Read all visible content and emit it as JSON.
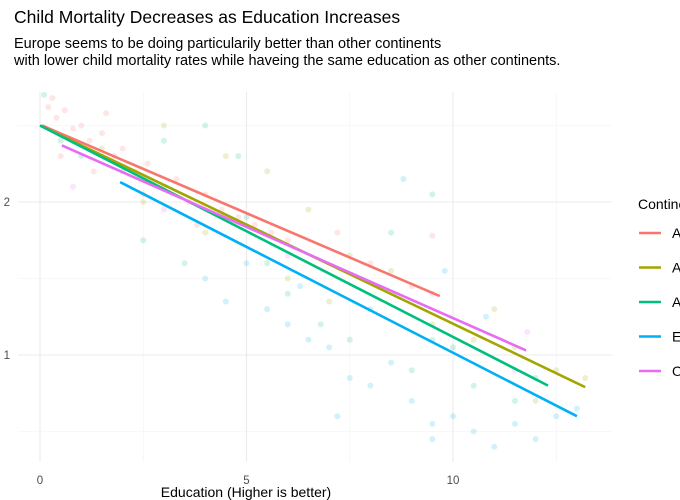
{
  "chart_data": {
    "type": "scatter",
    "title": "Child Mortality Decreases as Education Increases",
    "subtitle": [
      "Europe seems to be doing particularily better than other continents",
      "with lower child mortality rates while haveing the same education as other continents."
    ],
    "xlabel": "Education (Higher is better)",
    "ylabel": "",
    "xlim": [
      -0.5,
      13.8
    ],
    "ylim": [
      0.3,
      2.75
    ],
    "x_ticks": [
      0,
      5,
      10
    ],
    "y_ticks": [
      1,
      2
    ],
    "grid": true,
    "legend": {
      "title": "Continent",
      "placement": "right",
      "entries": [
        "Africa",
        "Americas",
        "Asia",
        "Europe",
        "Oceania"
      ]
    },
    "colors": {
      "Africa": "#F8766D",
      "Americas": "#A3A500",
      "Asia": "#00BF7D",
      "Europe": "#00B0F6",
      "Oceania": "#E76BF3"
    },
    "trend_lines": [
      {
        "name": "Africa",
        "x": [
          0.05,
          9.68
        ],
        "y": [
          2.5,
          1.385
        ]
      },
      {
        "name": "Americas",
        "x": [
          0.0,
          13.2
        ],
        "y": [
          2.5,
          0.79
        ]
      },
      {
        "name": "Asia",
        "x": [
          0.0,
          12.3
        ],
        "y": [
          2.5,
          0.8
        ]
      },
      {
        "name": "Europe",
        "x": [
          1.94,
          13.0
        ],
        "y": [
          2.13,
          0.6
        ]
      },
      {
        "name": "Oceania",
        "x": [
          0.53,
          11.77
        ],
        "y": [
          2.37,
          1.03
        ]
      }
    ],
    "points": {
      "Africa": [
        [
          0.2,
          2.62
        ],
        [
          0.4,
          2.55
        ],
        [
          0.6,
          2.6
        ],
        [
          0.8,
          2.48
        ],
        [
          1.0,
          2.5
        ],
        [
          1.2,
          2.4
        ],
        [
          1.5,
          2.45
        ],
        [
          1.8,
          2.3
        ],
        [
          2.0,
          2.35
        ],
        [
          2.3,
          2.2
        ],
        [
          2.6,
          2.25
        ],
        [
          3.0,
          2.1
        ],
        [
          3.3,
          2.15
        ],
        [
          3.6,
          2.0
        ],
        [
          4.0,
          2.05
        ],
        [
          4.4,
          1.95
        ],
        [
          4.8,
          1.9
        ],
        [
          5.2,
          1.85
        ],
        [
          5.6,
          1.8
        ],
        [
          6.0,
          1.75
        ],
        [
          0.5,
          2.3
        ],
        [
          1.3,
          2.2
        ],
        [
          2.5,
          2.05
        ],
        [
          3.8,
          1.85
        ],
        [
          7.2,
          1.8
        ],
        [
          8.0,
          1.6
        ],
        [
          9.0,
          1.45
        ],
        [
          9.5,
          1.78
        ],
        [
          0.3,
          2.68
        ],
        [
          1.6,
          2.58
        ]
      ],
      "Americas": [
        [
          1.5,
          2.35
        ],
        [
          3.0,
          2.5
        ],
        [
          4.5,
          2.3
        ],
        [
          5.5,
          2.2
        ],
        [
          6.5,
          1.95
        ],
        [
          7.5,
          1.65
        ],
        [
          8.5,
          1.55
        ],
        [
          9.5,
          1.2
        ],
        [
          10.5,
          1.1
        ],
        [
          11.5,
          1.05
        ],
        [
          12.5,
          0.9
        ],
        [
          13.2,
          0.85
        ],
        [
          2.5,
          2.0
        ],
        [
          4.0,
          1.8
        ],
        [
          6.0,
          1.5
        ],
        [
          7.0,
          1.35
        ],
        [
          11.0,
          1.3
        ],
        [
          12.0,
          0.7
        ]
      ],
      "Asia": [
        [
          0.1,
          2.7
        ],
        [
          0.5,
          2.4
        ],
        [
          1.0,
          2.3
        ],
        [
          2.0,
          2.2
        ],
        [
          3.0,
          2.4
        ],
        [
          4.0,
          2.5
        ],
        [
          4.8,
          2.3
        ],
        [
          3.5,
          1.6
        ],
        [
          5.0,
          1.9
        ],
        [
          5.5,
          1.6
        ],
        [
          6.0,
          1.4
        ],
        [
          6.8,
          1.2
        ],
        [
          7.5,
          1.1
        ],
        [
          8.0,
          1.3
        ],
        [
          9.0,
          0.9
        ],
        [
          9.5,
          1.1
        ],
        [
          10.0,
          1.05
        ],
        [
          10.5,
          0.8
        ],
        [
          11.5,
          0.7
        ],
        [
          12.0,
          0.85
        ],
        [
          9.5,
          2.05
        ],
        [
          8.5,
          1.8
        ],
        [
          2.5,
          1.75
        ]
      ],
      "Europe": [
        [
          4.0,
          1.5
        ],
        [
          4.5,
          1.35
        ],
        [
          5.0,
          1.6
        ],
        [
          5.5,
          1.3
        ],
        [
          6.0,
          1.2
        ],
        [
          6.5,
          1.1
        ],
        [
          7.0,
          1.05
        ],
        [
          7.5,
          0.85
        ],
        [
          8.0,
          0.8
        ],
        [
          8.5,
          0.95
        ],
        [
          9.0,
          0.7
        ],
        [
          9.5,
          0.55
        ],
        [
          10.0,
          0.6
        ],
        [
          10.5,
          0.5
        ],
        [
          11.0,
          0.4
        ],
        [
          11.5,
          0.55
        ],
        [
          12.0,
          0.45
        ],
        [
          12.5,
          0.6
        ],
        [
          13.0,
          0.65
        ],
        [
          8.8,
          2.15
        ],
        [
          9.8,
          1.55
        ],
        [
          10.8,
          1.25
        ],
        [
          7.2,
          0.6
        ],
        [
          9.5,
          0.45
        ],
        [
          6.3,
          1.45
        ]
      ],
      "Oceania": [
        [
          0.8,
          2.1
        ],
        [
          3.0,
          1.95
        ],
        [
          6.0,
          1.65
        ],
        [
          9.5,
          1.4
        ],
        [
          11.8,
          1.15
        ],
        [
          11.5,
          0.9
        ]
      ]
    }
  }
}
